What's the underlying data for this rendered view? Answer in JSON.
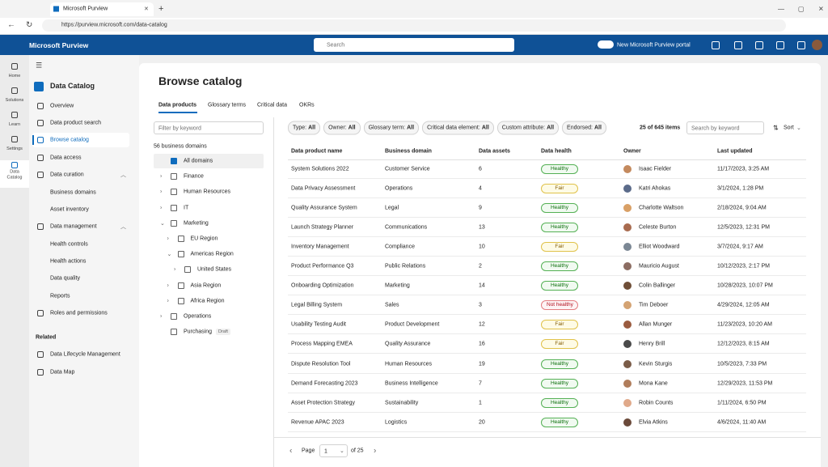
{
  "browser": {
    "tab_title": "Microsoft Purview",
    "url": "https://purview.microsoft.com/data-catalog"
  },
  "header": {
    "app_name": "Microsoft Purview",
    "search_placeholder": "Search",
    "toggle_label": "New Microsoft Purview portal"
  },
  "rail": [
    "Home",
    "Solutions",
    "Learn",
    "Settings",
    "Data Catalog"
  ],
  "nav": {
    "title": "Data Catalog",
    "items": [
      "Overview",
      "Data product search",
      "Browse catalog",
      "Data access",
      "Data curation",
      "Business domains",
      "Asset inventory",
      "Data management",
      "Health controls",
      "Health actions",
      "Data quality",
      "Reports",
      "Roles and permissions"
    ],
    "related_title": "Related",
    "related": [
      "Data Lifecycle Management",
      "Data Map"
    ]
  },
  "main": {
    "title": "Browse catalog",
    "tabs": [
      "Data products",
      "Glossary terms",
      "Critical data",
      "OKRs"
    ],
    "filter_placeholder": "Filter by keyword",
    "domains_count": "56 business domains",
    "tree": [
      "All domains",
      "Finance",
      "Human Resources",
      "IT",
      "Marketing",
      "EU Region",
      "Americas Region",
      "United States",
      "Asia Region",
      "Africa Region",
      "Operations",
      "Purchasing"
    ],
    "draft_badge": "Draft",
    "chips": [
      {
        "label": "Type:",
        "value": "All"
      },
      {
        "label": "Owner:",
        "value": "All"
      },
      {
        "label": "Glossary term:",
        "value": "All"
      },
      {
        "label": "Critical data element:",
        "value": "All"
      },
      {
        "label": "Custom attribute:",
        "value": "All"
      },
      {
        "label": "Endorsed:",
        "value": "All"
      }
    ],
    "item_count": "25 of 645 items",
    "search_placeholder": "Search by keyword",
    "sort": "Sort"
  },
  "table": {
    "columns": [
      "Data product name",
      "Business domain",
      "Data assets",
      "Data health",
      "Owner",
      "Last updated"
    ],
    "rows": [
      [
        "System Solutions 2022",
        "Customer Service",
        "6",
        "Healthy",
        "Isaac Fielder",
        "11/17/2023, 3:25 AM"
      ],
      [
        "Data Privacy Assessment",
        "Operations",
        "4",
        "Fair",
        "Katri Ahokas",
        "3/1/2024, 1:28 PM"
      ],
      [
        "Quality Assurance System",
        "Legal",
        "9",
        "Healthy",
        "Charlotte Waltson",
        "2/18/2024, 9:04 AM"
      ],
      [
        "Launch Strategy Planner",
        "Communications",
        "13",
        "Healthy",
        "Celeste Burton",
        "12/5/2023, 12:31 PM"
      ],
      [
        "Inventory Management",
        "Compliance",
        "10",
        "Fair",
        "Elliot Woodward",
        "3/7/2024, 9:17 AM"
      ],
      [
        "Product Performance Q3",
        "Public Relations",
        "2",
        "Healthy",
        "Mauricio August",
        "10/12/2023, 2:17 PM"
      ],
      [
        "Onboarding Optimization",
        "Marketing",
        "14",
        "Healthy",
        "Colin Ballinger",
        "10/28/2023, 10:07 PM"
      ],
      [
        "Legal Billing System",
        "Sales",
        "3",
        "Not healthy",
        "Tim Deboer",
        "4/29/2024, 12:05 AM"
      ],
      [
        "Usability Testing Audit",
        "Product Development",
        "12",
        "Fair",
        "Allan Munger",
        "11/23/2023, 10:20 AM"
      ],
      [
        "Process Mapping EMEA",
        "Quality Assurance",
        "16",
        "Fair",
        "Henry Brill",
        "12/12/2023, 8:15 AM"
      ],
      [
        "Dispute Resolution Tool",
        "Human Resources",
        "19",
        "Healthy",
        "Kevin Sturgis",
        "10/5/2023, 7:33 PM"
      ],
      [
        "Demand Forecasting 2023",
        "Business Intelligence",
        "7",
        "Healthy",
        "Mona Kane",
        "12/29/2023, 11:53 PM"
      ],
      [
        "Asset Protection Strategy",
        "Sustainability",
        "1",
        "Healthy",
        "Robin Counts",
        "1/11/2024, 6:50 PM"
      ],
      [
        "Revenue APAC 2023",
        "Logistics",
        "20",
        "Healthy",
        "Elvia Atkins",
        "4/6/2024, 11:40 AM"
      ]
    ]
  },
  "pagination": {
    "label": "Page",
    "current": "1",
    "total": "of 25"
  }
}
